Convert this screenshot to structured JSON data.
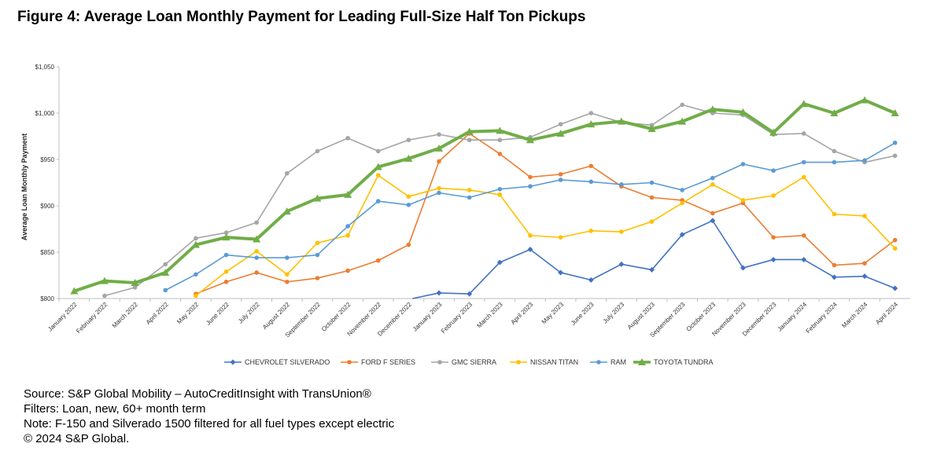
{
  "figure": {
    "title": "Figure 4: Average Loan Monthly Payment for Leading Full-Size Half Ton Pickups"
  },
  "notes": [
    "Source: S&P Global Mobility – AutoCreditInsight with TransUnion®",
    "Filters: Loan, new, 60+ month term",
    "Note: F-150 and Silverado 1500 filtered for all fuel types except electric",
    "© 2024 S&P Global."
  ],
  "chart_data": {
    "type": "line",
    "title": "",
    "xlabel": "",
    "ylabel": "Average Loan Monthly Payment",
    "ylim": [
      800,
      1050
    ],
    "ytick_values": [
      800,
      850,
      900,
      950,
      1000,
      1050
    ],
    "ytick_labels": [
      "$800",
      "$850",
      "$900",
      "$950",
      "$1,000",
      "$1,050"
    ],
    "grid": false,
    "legend_position": "bottom",
    "categories": [
      "January 2022",
      "February 2022",
      "March 2022",
      "April 2022",
      "May 2022",
      "June 2022",
      "July 2022",
      "August 2022",
      "September 2022",
      "October 2022",
      "November 2022",
      "December 2022",
      "January 2023",
      "February 2023",
      "March 2023",
      "April 2023",
      "May 2023",
      "June 2023",
      "July 2023",
      "August 2023",
      "September 2023",
      "October 2023",
      "November 2023",
      "December 2023",
      "January 2024",
      "February 2024",
      "March 2024",
      "April 2024"
    ],
    "series": [
      {
        "name": "CHEVROLET SILVERADO",
        "color": "#4472C4",
        "marker": "diamond",
        "values": [
          null,
          null,
          null,
          null,
          null,
          null,
          null,
          null,
          null,
          null,
          null,
          null,
          806,
          805,
          839,
          853,
          828,
          820,
          837,
          831,
          869,
          884,
          833,
          842,
          842,
          823,
          824,
          811
        ]
      },
      {
        "name": "FORD F SERIES",
        "color": "#ED7D31",
        "marker": "circle",
        "values": [
          null,
          null,
          null,
          null,
          805,
          818,
          828,
          818,
          822,
          830,
          841,
          858,
          948,
          978,
          956,
          931,
          934,
          943,
          921,
          909,
          906,
          892,
          903,
          866,
          868,
          836,
          838,
          863
        ]
      },
      {
        "name": "GMC SIERRA",
        "color": "#A5A5A5",
        "marker": "circle",
        "values": [
          null,
          803,
          812,
          837,
          865,
          871,
          882,
          935,
          959,
          973,
          959,
          971,
          977,
          971,
          971,
          974,
          988,
          1000,
          990,
          987,
          1009,
          1000,
          998,
          977,
          978,
          959,
          947,
          954
        ]
      },
      {
        "name": "NISSAN TITAN",
        "color": "#FFC000",
        "marker": "circle",
        "values": [
          null,
          null,
          null,
          null,
          803,
          829,
          851,
          826,
          860,
          868,
          933,
          910,
          919,
          917,
          912,
          868,
          866,
          873,
          872,
          883,
          903,
          923,
          906,
          911,
          931,
          891,
          889,
          854
        ]
      },
      {
        "name": "RAM",
        "color": "#5B9BD5",
        "marker": "circle",
        "values": [
          null,
          null,
          null,
          809,
          826,
          847,
          844,
          844,
          847,
          878,
          905,
          901,
          914,
          909,
          918,
          921,
          928,
          926,
          923,
          925,
          917,
          930,
          945,
          938,
          947,
          947,
          949,
          968
        ]
      },
      {
        "name": "TOYOTA TUNDRA",
        "color": "#70AD47",
        "marker": "triangle",
        "values": [
          808,
          819,
          817,
          828,
          858,
          866,
          864,
          894,
          908,
          912,
          942,
          951,
          962,
          980,
          981,
          971,
          978,
          988,
          991,
          983,
          991,
          1004,
          1001,
          979,
          1010,
          1000,
          1014,
          1000
        ]
      }
    ]
  }
}
